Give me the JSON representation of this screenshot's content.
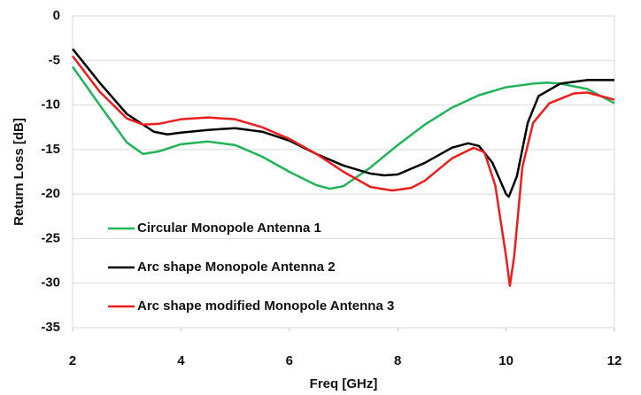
{
  "chart_data": {
    "type": "line",
    "x_label": "Freq [GHz]",
    "y_label": "Return Loss [dB]",
    "xlim": [
      2,
      12
    ],
    "xticks": [
      2,
      4,
      6,
      8,
      10,
      12
    ],
    "ylim": [
      -35,
      0
    ],
    "yticks": [
      -35,
      -30,
      -25,
      -20,
      -15,
      -10,
      -5,
      0
    ],
    "grid": true,
    "legend": "lower left",
    "series": [
      {
        "name": "Circular Monopole Antenna 1",
        "color": "#1fb35a",
        "x": [
          2,
          2.5,
          3,
          3.3,
          3.6,
          4,
          4.5,
          5,
          5.5,
          6,
          6.5,
          6.75,
          7,
          7.5,
          8,
          8.5,
          9,
          9.5,
          10,
          10.5,
          10.75,
          11,
          11.5,
          12
        ],
        "values": [
          -5.7,
          -10,
          -14.2,
          -15.5,
          -15.2,
          -14.4,
          -14.1,
          -14.5,
          -15.8,
          -17.5,
          -19,
          -19.4,
          -19.1,
          -17,
          -14.5,
          -12.2,
          -10.3,
          -8.9,
          -8,
          -7.6,
          -7.5,
          -7.6,
          -8.2,
          -9.8
        ]
      },
      {
        "name": "Arc shape Monopole Antenna 2",
        "color": "#000000",
        "x": [
          2,
          2.5,
          3,
          3.5,
          3.75,
          4,
          4.5,
          5,
          5.5,
          6,
          6.5,
          7,
          7.5,
          7.75,
          8,
          8.5,
          9,
          9.3,
          9.5,
          9.75,
          10,
          10.05,
          10.2,
          10.4,
          10.6,
          11,
          11.5,
          12
        ],
        "values": [
          -3.7,
          -7.5,
          -11,
          -13,
          -13.3,
          -13.1,
          -12.8,
          -12.6,
          -13,
          -14,
          -15.5,
          -16.8,
          -17.7,
          -17.9,
          -17.8,
          -16.5,
          -14.8,
          -14.3,
          -14.6,
          -16.5,
          -20,
          -20.3,
          -18,
          -12,
          -9,
          -7.6,
          -7.2,
          -7.2
        ]
      },
      {
        "name": "Arc shape modified Monopole Antenna 3",
        "color": "#ee1c1c",
        "x": [
          2,
          2.5,
          3,
          3.3,
          3.6,
          4,
          4.5,
          5,
          5.5,
          6,
          6.5,
          7,
          7.5,
          7.9,
          8.25,
          8.5,
          9,
          9.4,
          9.6,
          9.8,
          10,
          10.07,
          10.15,
          10.3,
          10.5,
          10.8,
          11.25,
          11.5,
          12
        ],
        "values": [
          -4.5,
          -8.5,
          -11.5,
          -12.2,
          -12.1,
          -11.6,
          -11.4,
          -11.6,
          -12.5,
          -13.8,
          -15.5,
          -17.5,
          -19.2,
          -19.6,
          -19.3,
          -18.5,
          -16,
          -14.8,
          -15.3,
          -19,
          -27,
          -30.3,
          -27,
          -17,
          -12,
          -9.8,
          -8.7,
          -8.6,
          -9.4
        ]
      }
    ]
  }
}
